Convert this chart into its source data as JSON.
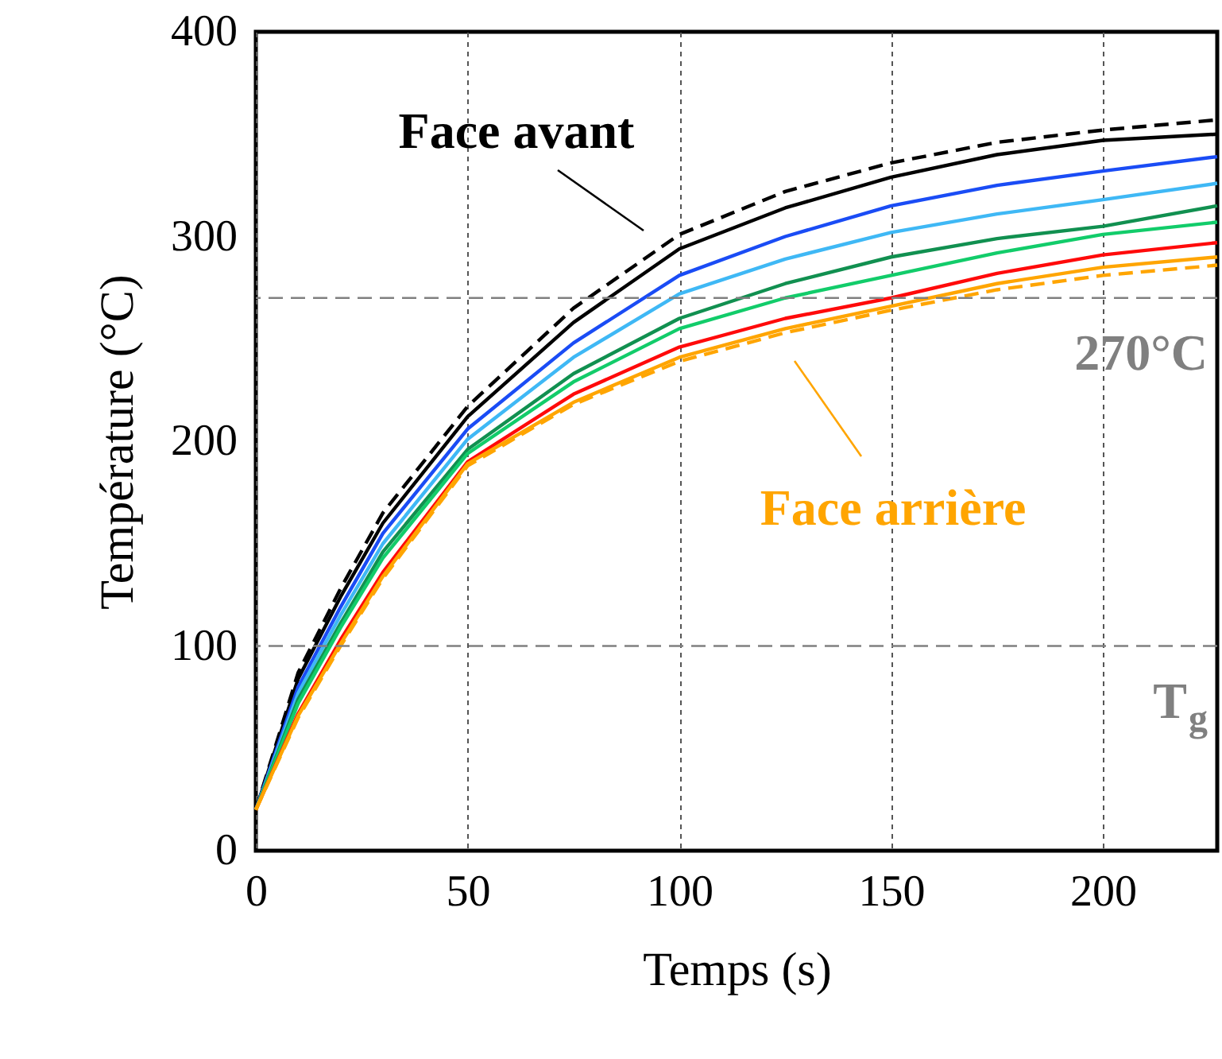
{
  "chart_data": {
    "type": "line",
    "xlabel": "Temps (s)",
    "ylabel": "Température (°C)",
    "x": [
      0,
      10,
      20,
      30,
      50,
      75,
      100,
      125,
      150,
      175,
      200,
      227
    ],
    "xlim": [
      0,
      227
    ],
    "ylim": [
      0,
      400
    ],
    "xticks": [
      0,
      50,
      100,
      150,
      200
    ],
    "yticks": [
      0,
      100,
      200,
      300,
      400
    ],
    "grid": "x",
    "series": [
      {
        "color": "#000000",
        "line_style": "dashed",
        "values": [
          20,
          87,
          128,
          165,
          217,
          265,
          301,
          322,
          336,
          346,
          352,
          357
        ]
      },
      {
        "color": "#000000",
        "line_style": "solid",
        "values": [
          20,
          84,
          124,
          160,
          212,
          258,
          294,
          314,
          329,
          340,
          347,
          350
        ]
      },
      {
        "color": "#1a4cf5",
        "line_style": "solid",
        "values": [
          20,
          80,
          119,
          155,
          206,
          248,
          281,
          300,
          315,
          325,
          332,
          339
        ]
      },
      {
        "color": "#3fb8f5",
        "line_style": "solid",
        "values": [
          20,
          77,
          115,
          150,
          201,
          241,
          272,
          289,
          302,
          311,
          318,
          326
        ]
      },
      {
        "color": "#119050",
        "line_style": "solid",
        "values": [
          20,
          74,
          111,
          146,
          196,
          233,
          260,
          277,
          290,
          299,
          305,
          315
        ]
      },
      {
        "color": "#12cc6a",
        "line_style": "solid",
        "values": [
          20,
          72,
          109,
          143,
          194,
          229,
          255,
          270,
          281,
          292,
          301,
          307
        ]
      },
      {
        "color": "#ff0a0a",
        "line_style": "solid",
        "values": [
          20,
          67,
          103,
          136,
          190,
          223,
          246,
          260,
          270,
          282,
          291,
          297
        ]
      },
      {
        "color": "#ffa500",
        "line_style": "solid",
        "values": [
          20,
          66,
          101,
          134,
          189,
          219,
          241,
          255,
          266,
          277,
          285,
          290
        ]
      },
      {
        "color": "#ffa500",
        "line_style": "dashed",
        "values": [
          20,
          65,
          100,
          133,
          188,
          218,
          239,
          253,
          264,
          274,
          281,
          286
        ]
      }
    ],
    "ref_lines": [
      {
        "axis": "y",
        "value": 270,
        "label": "270°C",
        "color": "#808080",
        "line_style": "dashed"
      },
      {
        "axis": "y",
        "value": 100,
        "label": "T$_{g}$",
        "color": "#808080",
        "line_style": "dashed"
      }
    ],
    "annotations": [
      "Face avant",
      "Face arrière"
    ]
  }
}
